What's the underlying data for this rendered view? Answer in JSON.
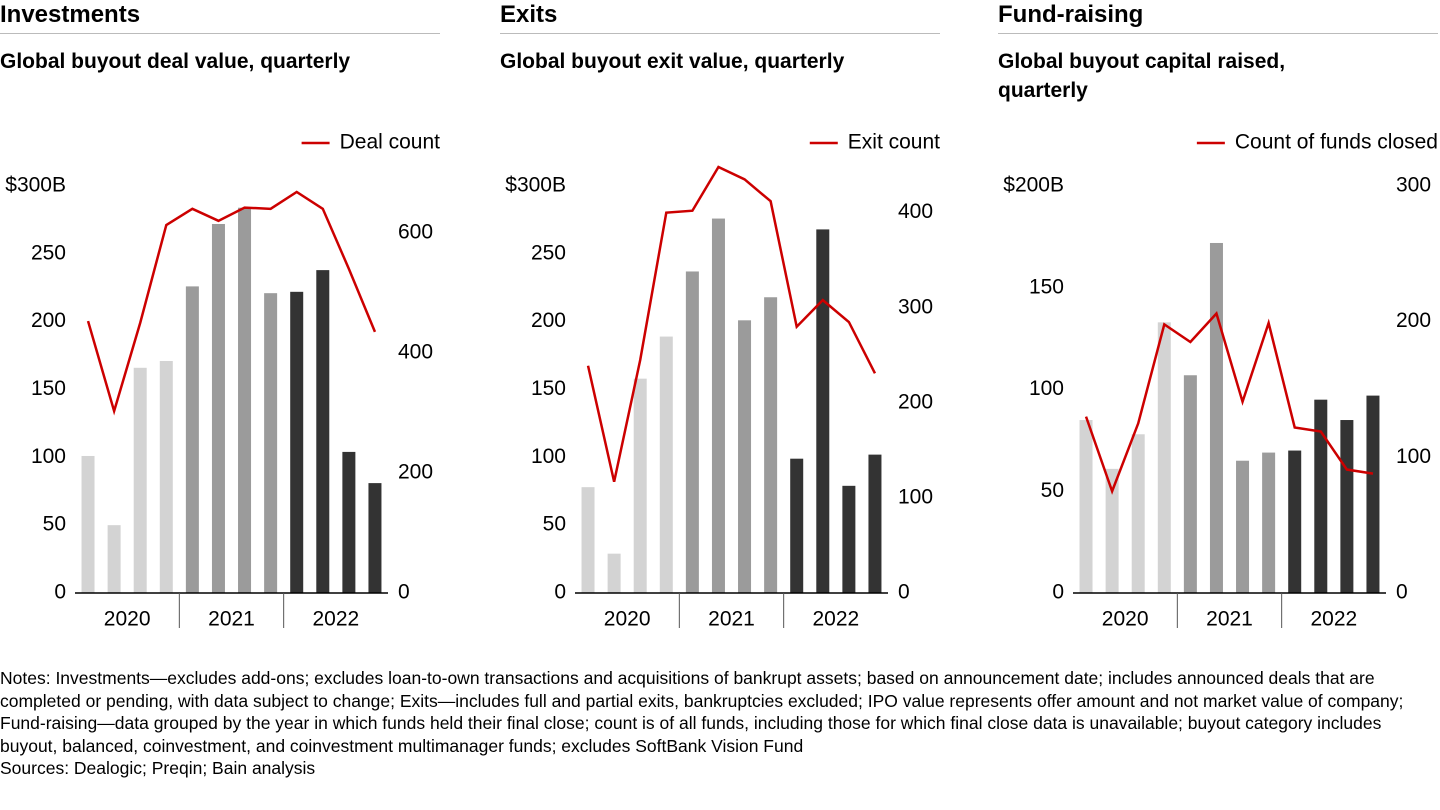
{
  "chart_data": [
    {
      "type": "bar",
      "title": "Investments",
      "subtitle": "Global buyout deal value, quarterly",
      "groups": [
        "2020",
        "2021",
        "2022"
      ],
      "series": [
        {
          "type": "bar",
          "colors": [
            "#d3d3d3",
            "#d3d3d3",
            "#d3d3d3",
            "#d3d3d3",
            "#9b9b9b",
            "#9b9b9b",
            "#9b9b9b",
            "#9b9b9b",
            "#333333",
            "#333333",
            "#333333",
            "#333333"
          ],
          "values": [
            101,
            50,
            166,
            171,
            226,
            272,
            284,
            221,
            222,
            238,
            104,
            81
          ]
        },
        {
          "type": "line",
          "name": "Deal count",
          "color": "#cc0000",
          "axis": "y2",
          "values": [
            453,
            303,
            450,
            613,
            640,
            620,
            642,
            640,
            668,
            640,
            540,
            435
          ]
        }
      ],
      "ylim": [
        0,
        300
      ],
      "yticks": [
        0,
        50,
        100,
        150,
        200,
        250,
        {
          "value": 300,
          "label": "$300B"
        }
      ],
      "y2lim": [
        0,
        678
      ],
      "y2ticks": [
        0,
        200,
        400,
        600
      ]
    },
    {
      "type": "bar",
      "title": "Exits",
      "subtitle": "Global buyout exit value, quarterly",
      "groups": [
        "2020",
        "2021",
        "2022"
      ],
      "series": [
        {
          "type": "bar",
          "colors": [
            "#d3d3d3",
            "#d3d3d3",
            "#d3d3d3",
            "#d3d3d3",
            "#9b9b9b",
            "#9b9b9b",
            "#9b9b9b",
            "#9b9b9b",
            "#333333",
            "#333333",
            "#333333",
            "#333333"
          ],
          "values": [
            78,
            29,
            158,
            189,
            237,
            276,
            201,
            218,
            99,
            268,
            79,
            102
          ]
        },
        {
          "type": "line",
          "name": "Exit count",
          "color": "#cc0000",
          "axis": "y2",
          "values": [
            239,
            117,
            245,
            400,
            402,
            448,
            435,
            412,
            280,
            308,
            285,
            231
          ]
        }
      ],
      "ylim": [
        0,
        300
      ],
      "yticks": [
        0,
        50,
        100,
        150,
        200,
        250,
        {
          "value": 300,
          "label": "$300B"
        }
      ],
      "y2lim": [
        0,
        428
      ],
      "y2ticks": [
        0,
        100,
        200,
        300,
        400
      ]
    },
    {
      "type": "bar",
      "title": "Fund-raising",
      "subtitle": "Global buyout capital raised, quarterly",
      "groups": [
        "2020",
        "2021",
        "2022"
      ],
      "series": [
        {
          "type": "bar",
          "colors": [
            "#d3d3d3",
            "#d3d3d3",
            "#d3d3d3",
            "#d3d3d3",
            "#9b9b9b",
            "#9b9b9b",
            "#9b9b9b",
            "#9b9b9b",
            "#333333",
            "#333333",
            "#333333",
            "#333333"
          ],
          "values": [
            85,
            61,
            78,
            133,
            107,
            172,
            65,
            69,
            70,
            95,
            85,
            97
          ]
        },
        {
          "type": "line",
          "name": "Count of funds closed",
          "color": "#cc0000",
          "axis": "y2",
          "values": [
            130,
            75,
            125,
            198,
            185,
            206,
            141,
            199,
            122,
            119,
            91,
            88
          ]
        }
      ],
      "ylim": [
        0,
        200
      ],
      "yticks": [
        0,
        50,
        100,
        150,
        {
          "value": 200,
          "label": "$200B"
        }
      ],
      "y2lim": [
        0,
        300
      ],
      "y2ticks": [
        0,
        100,
        200,
        300
      ]
    }
  ],
  "notes": "Notes: Investments—excludes add-ons; excludes loan-to-own transactions and acquisitions of bankrupt assets; based on announcement date; includes announced deals that are completed or pending, with data subject to change; Exits—includes full and partial exits, bankruptcies excluded; IPO value represents offer amount and not market value of company; Fund-raising—data grouped by the year in which funds held their final close; count is of all funds, including those for which final close data is unavailable; buyout category includes buyout, balanced, coinvestment, and coinvestment multimanager funds; excludes SoftBank Vision Fund",
  "sources": "Sources: Dealogic; Preqin; Bain analysis"
}
